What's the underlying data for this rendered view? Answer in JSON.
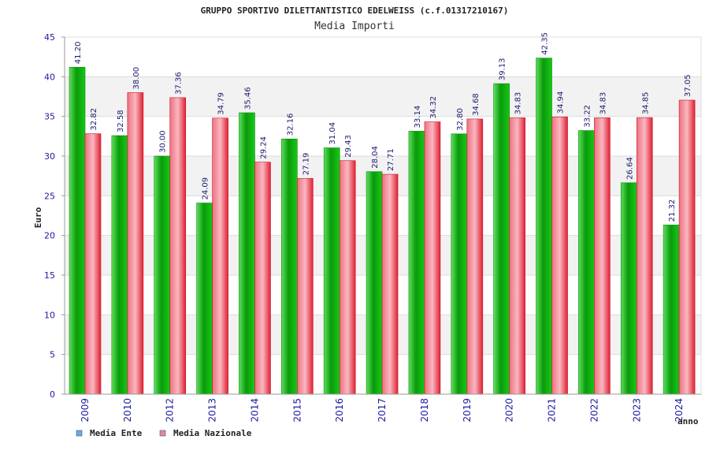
{
  "chart_data": {
    "type": "bar",
    "title": "GRUPPO SPORTIVO DILETTANTISTICO EDELWEISS (c.f.01317210167)",
    "subtitle": "Media Importi",
    "xlabel": "anno",
    "ylabel": "Euro",
    "ylim": [
      0,
      45
    ],
    "yticks": [
      0,
      5,
      10,
      15,
      20,
      25,
      30,
      35,
      40,
      45
    ],
    "grid": true,
    "legend_position": "bottom-left",
    "categories": [
      "2009",
      "2010",
      "2012",
      "2013",
      "2014",
      "2015",
      "2016",
      "2017",
      "2018",
      "2019",
      "2020",
      "2021",
      "2022",
      "2023",
      "2024"
    ],
    "series": [
      {
        "name": "Media Ente",
        "legend_color": "#66aaee",
        "bar_color": "#11bb11",
        "values": [
          41.2,
          32.58,
          30.0,
          24.09,
          35.46,
          32.16,
          31.04,
          28.04,
          33.14,
          32.8,
          39.13,
          42.35,
          33.22,
          26.64,
          21.32
        ],
        "labels": [
          "41.20",
          "32.58",
          "30.00",
          "24.09",
          "35.46",
          "32.16",
          "31.04",
          "28.04",
          "33.14",
          "32.80",
          "39.13",
          "42.35",
          "33.22",
          "26.64",
          "21.32"
        ]
      },
      {
        "name": "Media Nazionale",
        "legend_color": "#dd88aa",
        "bar_color": "#ee3344",
        "values": [
          32.82,
          38.0,
          37.36,
          34.79,
          29.24,
          27.19,
          29.43,
          27.71,
          34.32,
          34.68,
          34.83,
          34.94,
          34.83,
          34.85,
          37.05
        ],
        "labels": [
          "32.82",
          "38.00",
          "37.36",
          "34.79",
          "29.24",
          "27.19",
          "29.43",
          "27.71",
          "34.32",
          "34.68",
          "34.83",
          "34.94",
          "34.83",
          "34.85",
          "37.05"
        ]
      }
    ]
  }
}
